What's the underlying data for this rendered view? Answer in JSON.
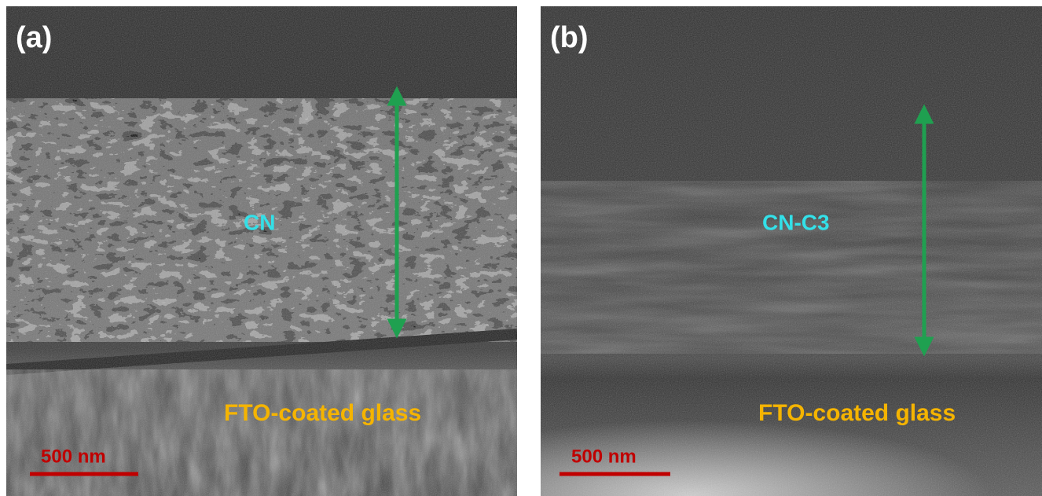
{
  "panels": [
    {
      "label": "(a)",
      "layer": "CN",
      "substrate": "FTO-coated glass",
      "scale_bar": "500 nm"
    },
    {
      "label": "(b)",
      "layer": "CN-C3",
      "substrate": "FTO-coated glass",
      "scale_bar": "500 nm"
    }
  ]
}
